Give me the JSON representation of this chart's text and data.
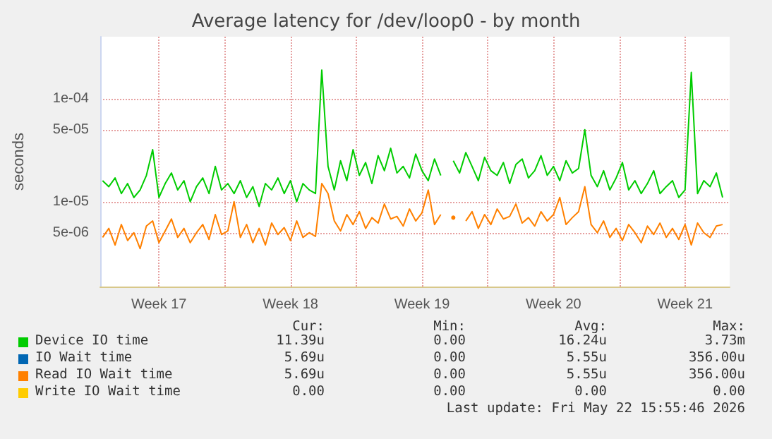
{
  "chart_data": {
    "type": "line",
    "title": "Average latency for /dev/loop0 - by month",
    "ylabel": "seconds",
    "log": "y",
    "grid": true,
    "legend": "bottom",
    "marker": "none",
    "line_style": "solid",
    "ylim": [
      1.5e-06,
      0.0004
    ],
    "yticks": [
      {
        "value": 0.0001,
        "label": "1e-04"
      },
      {
        "value": 5e-05,
        "label": "5e-05"
      },
      {
        "value": 1e-05,
        "label": "1e-05"
      },
      {
        "value": 5e-06,
        "label": "5e-06"
      }
    ],
    "xlim": [
      "2026-04-20T09:00",
      "2026-05-23T21:00"
    ],
    "xticks": [
      {
        "value": "2026-04-23T12:00",
        "label": "Week 17"
      },
      {
        "value": "2026-04-27T00:00",
        "label": null
      },
      {
        "value": "2026-04-30T12:00",
        "label": "Week 18"
      },
      {
        "value": "2026-05-04T00:00",
        "label": null
      },
      {
        "value": "2026-05-07T12:00",
        "label": "Week 19"
      },
      {
        "value": "2026-05-11T00:00",
        "label": null
      },
      {
        "value": "2026-05-14T12:00",
        "label": "Week 20"
      },
      {
        "value": "2026-05-18T00:00",
        "label": null
      },
      {
        "value": "2026-05-21T12:00",
        "label": "Week 21"
      }
    ],
    "x": [
      "2026-04-20T12:00",
      "2026-04-20T20:00",
      "2026-04-21T04:00",
      "2026-04-21T12:00",
      "2026-04-21T20:00",
      "2026-04-22T04:00",
      "2026-04-22T12:00",
      "2026-04-22T20:00",
      "2026-04-23T04:00",
      "2026-04-23T12:00",
      "2026-04-23T20:00",
      "2026-04-24T04:00",
      "2026-04-24T12:00",
      "2026-04-24T20:00",
      "2026-04-25T04:00",
      "2026-04-25T12:00",
      "2026-04-25T20:00",
      "2026-04-26T04:00",
      "2026-04-26T12:00",
      "2026-04-26T20:00",
      "2026-04-27T04:00",
      "2026-04-27T12:00",
      "2026-04-27T20:00",
      "2026-04-28T04:00",
      "2026-04-28T12:00",
      "2026-04-28T20:00",
      "2026-04-29T04:00",
      "2026-04-29T12:00",
      "2026-04-29T20:00",
      "2026-04-30T04:00",
      "2026-04-30T12:00",
      "2026-04-30T20:00",
      "2026-05-01T04:00",
      "2026-05-01T12:00",
      "2026-05-01T20:00",
      "2026-05-02T04:00",
      "2026-05-02T12:00",
      "2026-05-02T20:00",
      "2026-05-03T04:00",
      "2026-05-03T12:00",
      "2026-05-03T20:00",
      "2026-05-04T04:00",
      "2026-05-04T12:00",
      "2026-05-04T20:00",
      "2026-05-05T04:00",
      "2026-05-05T12:00",
      "2026-05-05T20:00",
      "2026-05-06T04:00",
      "2026-05-06T12:00",
      "2026-05-06T20:00",
      "2026-05-07T04:00",
      "2026-05-07T12:00",
      "2026-05-07T20:00",
      "2026-05-08T04:00",
      "2026-05-08T12:00",
      "2026-05-08T20:00",
      "2026-05-09T04:00",
      "2026-05-09T12:00",
      "2026-05-09T20:00",
      "2026-05-10T04:00",
      "2026-05-10T12:00",
      "2026-05-10T20:00",
      "2026-05-11T04:00",
      "2026-05-11T12:00",
      "2026-05-11T20:00",
      "2026-05-12T04:00",
      "2026-05-12T12:00",
      "2026-05-12T20:00",
      "2026-05-13T04:00",
      "2026-05-13T12:00",
      "2026-05-13T20:00",
      "2026-05-14T04:00",
      "2026-05-14T12:00",
      "2026-05-14T20:00",
      "2026-05-15T04:00",
      "2026-05-15T12:00",
      "2026-05-15T20:00",
      "2026-05-16T04:00",
      "2026-05-16T12:00",
      "2026-05-16T20:00",
      "2026-05-17T04:00",
      "2026-05-17T12:00",
      "2026-05-17T20:00",
      "2026-05-18T04:00",
      "2026-05-18T12:00",
      "2026-05-18T20:00",
      "2026-05-19T04:00",
      "2026-05-19T12:00",
      "2026-05-19T20:00",
      "2026-05-20T04:00",
      "2026-05-20T12:00",
      "2026-05-20T20:00",
      "2026-05-21T04:00",
      "2026-05-21T12:00",
      "2026-05-21T20:00",
      "2026-05-22T04:00",
      "2026-05-22T12:00",
      "2026-05-22T20:00",
      "2026-05-23T04:00",
      "2026-05-23T12:00"
    ],
    "series": [
      {
        "name": "Device IO time",
        "color": "#00cc00",
        "values": [
          1.6e-05,
          1.4e-05,
          1.7e-05,
          1.2e-05,
          1.5e-05,
          1.1e-05,
          1.3e-05,
          1.8e-05,
          3.2e-05,
          1.1e-05,
          1.5e-05,
          1.9e-05,
          1.3e-05,
          1.6e-05,
          1e-05,
          1.4e-05,
          1.7e-05,
          1.2e-05,
          2.2e-05,
          1.3e-05,
          1.5e-05,
          1.2e-05,
          1.6e-05,
          1.1e-05,
          1.4e-05,
          9e-06,
          1.5e-05,
          1.3e-05,
          1.7e-05,
          1.2e-05,
          1.6e-05,
          1e-05,
          1.5e-05,
          1.3e-05,
          1.2e-05,
          0.00019,
          2.2e-05,
          1.3e-05,
          2.5e-05,
          1.6e-05,
          3.2e-05,
          1.8e-05,
          2.4e-05,
          1.5e-05,
          2.8e-05,
          2e-05,
          3.3e-05,
          1.9e-05,
          2.2e-05,
          1.7e-05,
          2.9e-05,
          2e-05,
          1.6e-05,
          2.6e-05,
          1.8e-05,
          null,
          2.5e-05,
          1.9e-05,
          3e-05,
          2.2e-05,
          1.6e-05,
          2.7e-05,
          2e-05,
          1.8e-05,
          2.4e-05,
          1.5e-05,
          2.3e-05,
          2.6e-05,
          1.7e-05,
          2e-05,
          2.8e-05,
          1.8e-05,
          2.2e-05,
          1.6e-05,
          2.5e-05,
          1.9e-05,
          2.1e-05,
          5e-05,
          1.8e-05,
          1.4e-05,
          2e-05,
          1.3e-05,
          1.7e-05,
          2.4e-05,
          1.3e-05,
          1.6e-05,
          1.2e-05,
          1.5e-05,
          2e-05,
          1.2e-05,
          1.4e-05,
          1.6e-05,
          1.1e-05,
          1.3e-05,
          0.00018,
          1.2e-05,
          1.6e-05,
          1.4e-05,
          1.9e-05,
          1.1e-05
        ]
      },
      {
        "name": "IO Wait time",
        "color": "#0066b3",
        "values": [
          null,
          null,
          null,
          null,
          null,
          null,
          null,
          null,
          null,
          null,
          null,
          null,
          null,
          null,
          null,
          null,
          null,
          null,
          null,
          null,
          null,
          null,
          null,
          null,
          null,
          null,
          null,
          null,
          null,
          null,
          null,
          null,
          null,
          null,
          null,
          null,
          null,
          null,
          null,
          null,
          null,
          null,
          null,
          null,
          null,
          null,
          null,
          null,
          null,
          null,
          null,
          null,
          null,
          null,
          null,
          null,
          null,
          null,
          null,
          null,
          null,
          null,
          null,
          null,
          null,
          null,
          null,
          null,
          null,
          null,
          null,
          null,
          null,
          null,
          null,
          null,
          null,
          null,
          null,
          null,
          null,
          null,
          null,
          null,
          null,
          null,
          null,
          null,
          null,
          null,
          null,
          null,
          null,
          null,
          null,
          null,
          null,
          null,
          null,
          null
        ]
      },
      {
        "name": "Read IO Wait time",
        "color": "#ff8000",
        "values": [
          4.5e-06,
          5.5e-06,
          3.8e-06,
          6e-06,
          4.2e-06,
          5e-06,
          3.5e-06,
          5.8e-06,
          6.5e-06,
          4e-06,
          5.2e-06,
          6.8e-06,
          4.5e-06,
          5.5e-06,
          4e-06,
          5e-06,
          6e-06,
          4.3e-06,
          7.5e-06,
          4.8e-06,
          5.2e-06,
          1e-05,
          4.5e-06,
          6e-06,
          4e-06,
          5.5e-06,
          3.8e-06,
          6.2e-06,
          4.8e-06,
          5.6e-06,
          4.2e-06,
          6.5e-06,
          4.5e-06,
          5e-06,
          4.6e-06,
          1.5e-05,
          1.2e-05,
          6.5e-06,
          5.2e-06,
          7.5e-06,
          6e-06,
          8e-06,
          5.5e-06,
          7e-06,
          6.2e-06,
          9.5e-06,
          6.8e-06,
          7.2e-06,
          5.8e-06,
          8.5e-06,
          6.5e-06,
          7.8e-06,
          1.3e-05,
          6e-06,
          7.5e-06,
          null,
          7e-06,
          null,
          6.5e-06,
          8e-06,
          5.5e-06,
          7.5e-06,
          6e-06,
          8.5e-06,
          6.8e-06,
          7.2e-06,
          9.5e-06,
          6.2e-06,
          7e-06,
          5.8e-06,
          8e-06,
          6.5e-06,
          7.5e-06,
          1.1e-05,
          6e-06,
          7e-06,
          8e-06,
          1.4e-05,
          6e-06,
          5e-06,
          6.5e-06,
          4.5e-06,
          5.5e-06,
          4.2e-06,
          6e-06,
          5e-06,
          4e-06,
          5.8e-06,
          4.8e-06,
          6.2e-06,
          4.5e-06,
          5.5e-06,
          4.3e-06,
          6e-06,
          3.8e-06,
          6.2e-06,
          5e-06,
          4.5e-06,
          5.8e-06,
          6e-06
        ]
      },
      {
        "name": "Write IO Wait time",
        "color": "#ffcc00",
        "values": [
          null,
          null,
          null,
          null,
          null,
          null,
          null,
          null,
          null,
          null,
          null,
          null,
          null,
          null,
          null,
          null,
          null,
          null,
          null,
          null,
          null,
          null,
          null,
          null,
          null,
          null,
          null,
          null,
          null,
          null,
          null,
          null,
          null,
          null,
          null,
          null,
          null,
          null,
          null,
          null,
          null,
          null,
          null,
          null,
          null,
          null,
          null,
          null,
          null,
          null,
          null,
          null,
          null,
          null,
          null,
          null,
          null,
          null,
          null,
          null,
          null,
          null,
          null,
          null,
          null,
          null,
          null,
          null,
          null,
          null,
          null,
          null,
          null,
          null,
          null,
          null,
          null,
          null,
          null,
          null,
          null,
          null,
          null,
          null,
          null,
          null,
          null,
          null,
          null,
          null,
          null,
          null,
          null,
          null,
          null,
          null,
          null,
          null,
          null,
          null
        ]
      }
    ],
    "annotations": [
      "Cur:",
      "Min:",
      "Avg:",
      "Max:",
      "11.39u",
      "0.00",
      "16.24u",
      "3.73m",
      "5.69u",
      "0.00",
      "5.55u",
      "356.00u",
      "5.69u",
      "0.00",
      "5.55u",
      "356.00u",
      "0.00",
      "0.00",
      "0.00",
      "0.00",
      "Last update: Fri May 22 15:55:46 2026"
    ]
  }
}
